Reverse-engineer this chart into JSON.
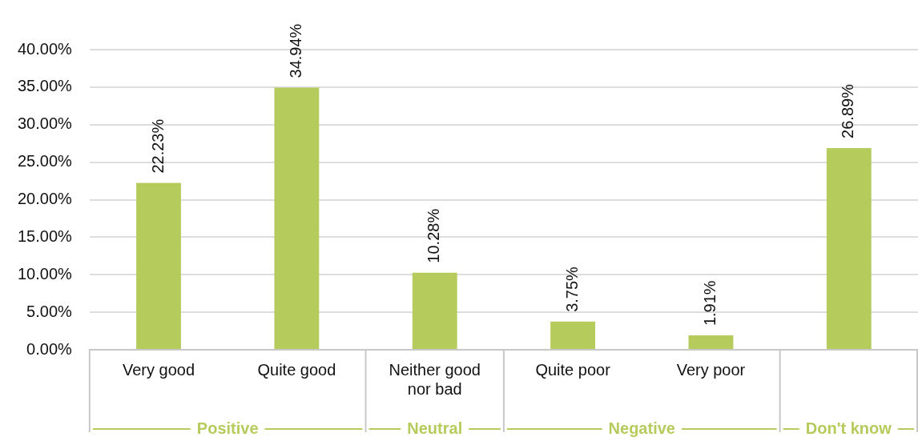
{
  "chart_data": {
    "type": "bar",
    "categories": [
      "Very good",
      "Quite good",
      "Neither good nor bad",
      "Quite poor",
      "Very poor",
      null
    ],
    "values": [
      22.23,
      34.94,
      10.28,
      3.75,
      1.91,
      26.89
    ],
    "value_labels": [
      "22.23%",
      "34.94%",
      "10.28%",
      "3.75%",
      "1.91%",
      "26.89%"
    ],
    "color": "#b5cb5c",
    "ylim": [
      0,
      40
    ],
    "yticks": [
      {
        "value": 0,
        "label": "0.00%"
      },
      {
        "value": 5,
        "label": "5.00%"
      },
      {
        "value": 10,
        "label": "10.00%"
      },
      {
        "value": 15,
        "label": "15.00%"
      },
      {
        "value": 20,
        "label": "20.00%"
      },
      {
        "value": 25,
        "label": "25.00%"
      },
      {
        "value": 30,
        "label": "30.00%"
      },
      {
        "value": 35,
        "label": "35.00%"
      },
      {
        "value": 40,
        "label": "40.00%"
      }
    ],
    "grid": "y",
    "annotations": [
      "Positive",
      "Neutral",
      "Negative",
      "Don't know"
    ]
  }
}
